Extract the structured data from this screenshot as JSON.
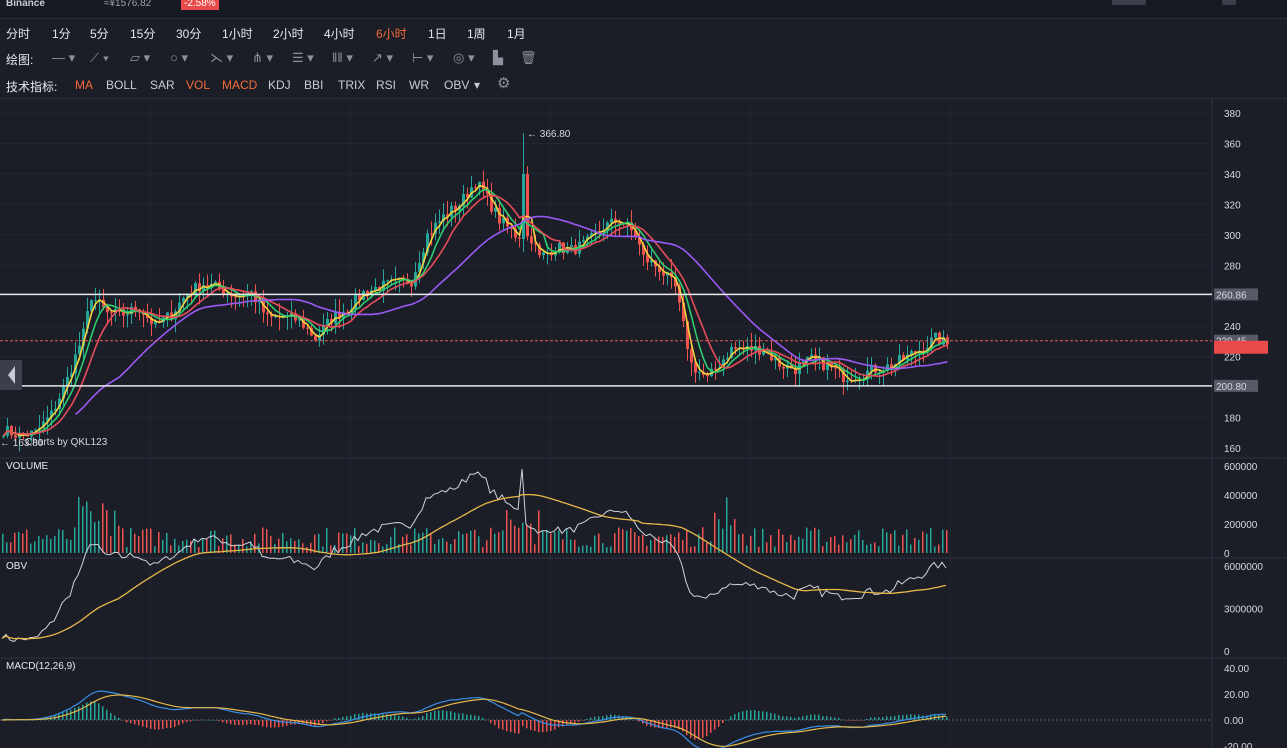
{
  "header": {
    "exchange": "Binance",
    "cny_price": "≈¥1576.82",
    "change": "-2.58%"
  },
  "timeframes": [
    "分时",
    "1分",
    "5分",
    "15分",
    "30分",
    "1小时",
    "2小时",
    "4小时",
    "6小时",
    "1日",
    "1周",
    "1月"
  ],
  "active_timeframe": "6小时",
  "toolbar": {
    "draw_label": "绘图:",
    "draw_icons": [
      "line-tool-icon",
      "ray-tool-icon",
      "channel-tool-icon",
      "circle-tool-icon",
      "polyline-tool-icon",
      "pitchfork-tool-icon",
      "fib-tool-icon",
      "gann-tool-icon",
      "arrow-tool-icon",
      "measure-tool-icon",
      "text-tool-icon",
      "chart-type-icon",
      "trash-icon"
    ],
    "indicator_label": "技术指标:",
    "indicators": [
      "MA",
      "BOLL",
      "SAR",
      "VOL",
      "MACD",
      "KDJ",
      "BBI",
      "TRIX",
      "RSI",
      "WR",
      "OBV"
    ],
    "active_indicators": [
      "MA",
      "VOL",
      "MACD"
    ]
  },
  "price_axis": [
    "380",
    "360",
    "340",
    "320",
    "300",
    "280",
    "260",
    "240",
    "220",
    "200",
    "180",
    "160"
  ],
  "price_lines": [
    {
      "label": "260.86",
      "value": 260.86
    },
    {
      "label": "230.45",
      "value": 230.45
    },
    {
      "label": "200.80",
      "value": 200.8
    }
  ],
  "current_price": 226.5,
  "high_marker": "← 366.80",
  "high_value": 366.8,
  "low_marker": "← 163.80",
  "low_value": 163.8,
  "watermark": "Charts by QKL123",
  "volume": {
    "label": "VOLUME",
    "axis": [
      "600000",
      "400000",
      "200000",
      "0"
    ]
  },
  "obv": {
    "label": "OBV",
    "axis": [
      "6000000",
      "3000000",
      "0"
    ]
  },
  "macd": {
    "label": "MACD(12,26,9)",
    "axis": [
      "40.00",
      "20.00",
      "0.00",
      "-20.00"
    ]
  },
  "colors": {
    "up": "#26a69a",
    "down": "#ef5350",
    "ma5": "#f5d33d",
    "ma10": "#2ecc71",
    "ma20": "#e84c5a",
    "ma60": "#9b59f5",
    "obv": "#cfd2d8",
    "obv_ma": "#e6b84a",
    "macd_dif": "#3a8ee6",
    "macd_dea": "#e6b84a",
    "accent": "#f26b38"
  },
  "chart_data": {
    "type": "line",
    "title": "",
    "price_range": [
      160,
      380
    ],
    "price_keypoints": [
      [
        0,
        172
      ],
      [
        4,
        168
      ],
      [
        8,
        170
      ],
      [
        12,
        182
      ],
      [
        16,
        205
      ],
      [
        20,
        235
      ],
      [
        22,
        260
      ],
      [
        26,
        248
      ],
      [
        30,
        248
      ],
      [
        34,
        252
      ],
      [
        38,
        240
      ],
      [
        42,
        248
      ],
      [
        46,
        262
      ],
      [
        50,
        268
      ],
      [
        54,
        265
      ],
      [
        58,
        260
      ],
      [
        62,
        262
      ],
      [
        66,
        245
      ],
      [
        70,
        246
      ],
      [
        74,
        244
      ],
      [
        78,
        232
      ],
      [
        82,
        245
      ],
      [
        86,
        252
      ],
      [
        90,
        262
      ],
      [
        94,
        266
      ],
      [
        98,
        268
      ],
      [
        102,
        270
      ],
      [
        104,
        285
      ],
      [
        106,
        300
      ],
      [
        110,
        312
      ],
      [
        114,
        320
      ],
      [
        118,
        335
      ],
      [
        120,
        328
      ],
      [
        124,
        310
      ],
      [
        128,
        300
      ],
      [
        132,
        298
      ],
      [
        134,
        285
      ],
      [
        138,
        292
      ],
      [
        142,
        290
      ],
      [
        146,
        295
      ],
      [
        150,
        305
      ],
      [
        154,
        310
      ],
      [
        158,
        300
      ],
      [
        160,
        285
      ],
      [
        164,
        278
      ],
      [
        168,
        265
      ],
      [
        170,
        240
      ],
      [
        172,
        215
      ],
      [
        174,
        210
      ],
      [
        176,
        205
      ],
      [
        178,
        212
      ],
      [
        182,
        225
      ],
      [
        186,
        225
      ],
      [
        190,
        225
      ],
      [
        194,
        215
      ],
      [
        198,
        212
      ],
      [
        202,
        218
      ],
      [
        206,
        214
      ],
      [
        210,
        207
      ],
      [
        214,
        208
      ],
      [
        218,
        212
      ],
      [
        222,
        214
      ],
      [
        226,
        220
      ],
      [
        230,
        226
      ],
      [
        233,
        232
      ],
      [
        236,
        228
      ]
    ]
  }
}
